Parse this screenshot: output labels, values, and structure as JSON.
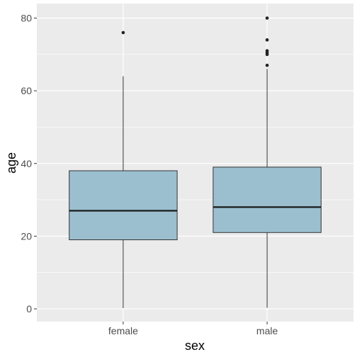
{
  "chart_data": {
    "type": "boxplot",
    "xlabel": "sex",
    "ylabel": "age",
    "categories": [
      "female",
      "male"
    ],
    "ylim": [
      -3.5,
      84
    ],
    "y_ticks": [
      0,
      20,
      40,
      60,
      80
    ],
    "grid": true,
    "box_fill": "#9bbfcf",
    "panel_background": "#ebebeb",
    "boxes": [
      {
        "category": "female",
        "min": 0.2,
        "q1": 19,
        "median": 27,
        "q3": 38,
        "max": 64,
        "outliers": [
          76
        ]
      },
      {
        "category": "male",
        "min": 0.3,
        "q1": 21,
        "median": 28,
        "q3": 39,
        "max": 66,
        "outliers": [
          67,
          70,
          70.5,
          71,
          74,
          80
        ]
      }
    ]
  }
}
